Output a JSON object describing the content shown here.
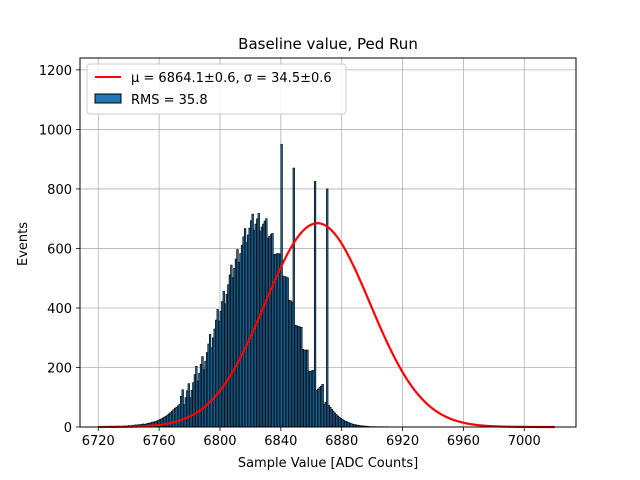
{
  "chart_data": {
    "type": "bar",
    "title": "Baseline value, Ped Run",
    "xlabel": "Sample Value [ADC Counts]",
    "ylabel": "Events",
    "xlim": [
      6708,
      7034
    ],
    "ylim": [
      0,
      1240
    ],
    "x_ticks": [
      6720,
      6760,
      6800,
      6840,
      6880,
      6920,
      6960,
      7000
    ],
    "y_ticks": [
      0,
      200,
      400,
      600,
      800,
      1000,
      1200
    ],
    "grid": true,
    "legend_position": "top-left",
    "colors": {
      "bar_fill": "#1f77b4",
      "bar_edge": "#000000",
      "fit_line": "#ff0000"
    },
    "histogram": {
      "x_start": 6720,
      "bin_width": 1,
      "counts": [
        1,
        0,
        1,
        0,
        2,
        1,
        0,
        1,
        1,
        2,
        1,
        1,
        2,
        3,
        2,
        2,
        3,
        4,
        3,
        4,
        5,
        4,
        6,
        5,
        7,
        6,
        8,
        7,
        9,
        10,
        9,
        10,
        12,
        13,
        14,
        16,
        17,
        18,
        20,
        22,
        25,
        27,
        30,
        33,
        36,
        40,
        44,
        48,
        53,
        58,
        63,
        66,
        71,
        76,
        84,
        90,
        97,
        105,
        112,
        120,
        130,
        139,
        149,
        160,
        172,
        180,
        190,
        204,
        214,
        228,
        240,
        253,
        266,
        282,
        295,
        312,
        326,
        340,
        360,
        378,
        395,
        412,
        430,
        446,
        462,
        478,
        495,
        512,
        527,
        543,
        558,
        574,
        588,
        602,
        614,
        626,
        638,
        648,
        658,
        665,
        674,
        680,
        684,
        688,
        690,
        692,
        690,
        688,
        682,
        676,
        668,
        660,
        650,
        640,
        628,
        614,
        600,
        585,
        570,
        552,
        536,
        520,
        502,
        485,
        466,
        448,
        430,
        410,
        392,
        374,
        356,
        338,
        320,
        303,
        286,
        268,
        252,
        236,
        221,
        206,
        192,
        178,
        165,
        152,
        140,
        129,
        118,
        108,
        98,
        89,
        81,
        73,
        66,
        59,
        53,
        47,
        42,
        37,
        33,
        29,
        26,
        22,
        19,
        17,
        15,
        13,
        11,
        9,
        8,
        7,
        6,
        5,
        4,
        4,
        3,
        3,
        2,
        2,
        1,
        1,
        1,
        1,
        1,
        0,
        1,
        0,
        1,
        0,
        0,
        1
      ],
      "named_peaks": [
        {
          "x": 6840,
          "y": 950
        },
        {
          "x": 6848,
          "y": 870
        },
        {
          "x": 6862,
          "y": 825
        },
        {
          "x": 6870,
          "y": 800
        }
      ]
    },
    "fit": {
      "name": "μ = 6864.1±0.6, σ = 34.5±0.6",
      "mu": 6864.1,
      "sigma": 34.5,
      "amplitude": 685,
      "x_range": [
        6720,
        7020
      ]
    },
    "legend": [
      {
        "label": "$\\mu = 6864.1\\pm0.6$, $\\sigma = 34.5\\pm0.6$",
        "display": "μ = 6864.1±0.6, σ = 34.5±0.6",
        "type": "line"
      },
      {
        "label": "RMS = 35.8",
        "display": "RMS = 35.8",
        "type": "patch"
      }
    ]
  }
}
